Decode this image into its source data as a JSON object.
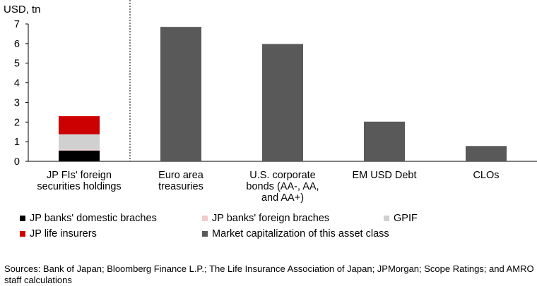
{
  "chart_data": {
    "type": "bar",
    "ylabel": "USD, tn",
    "ylim": [
      0,
      7
    ],
    "yticks": [
      0,
      1,
      2,
      3,
      4,
      5,
      6,
      7
    ],
    "categories": [
      [
        "JP FIs' foreign",
        "securities holdings"
      ],
      [
        "Euro area",
        "treasuries"
      ],
      [
        "U.S. corporate",
        "bonds (AA-, AA,",
        "and AA+)"
      ],
      [
        "EM USD Debt"
      ],
      [
        "CLOs"
      ]
    ],
    "stacked_bar": {
      "category_index": 0,
      "segments": [
        {
          "name": "JP banks' domestic braches",
          "value": 0.55,
          "color": "#000000"
        },
        {
          "name": "JP banks' foreign braches",
          "value": 0.05,
          "color": "#f2caca"
        },
        {
          "name": "GPIF",
          "value": 0.78,
          "color": "#d0d0d0"
        },
        {
          "name": "JP life insurers",
          "value": 0.92,
          "color": "#cc0000"
        }
      ]
    },
    "series": [
      {
        "name": "Market capitalization of this asset class",
        "color": "#595959",
        "values": [
          null,
          6.85,
          5.98,
          2.02,
          0.78
        ]
      }
    ],
    "divider_after_category": 0,
    "grid": false,
    "legend_position": "bottom"
  },
  "legend": [
    {
      "label": "JP banks' domestic braches",
      "color": "#000000"
    },
    {
      "label": "JP banks' foreign braches",
      "color": "#f2caca"
    },
    {
      "label": "GPIF",
      "color": "#d0d0d0"
    },
    {
      "label": "JP life insurers",
      "color": "#cc0000"
    },
    {
      "label": "Market capitalization of this asset class",
      "color": "#595959"
    }
  ],
  "source": "Sources: Bank of Japan; Bloomberg Finance L.P.; The Life Insurance Association of Japan; JPMorgan; Scope Ratings; and AMRO staff calculations"
}
